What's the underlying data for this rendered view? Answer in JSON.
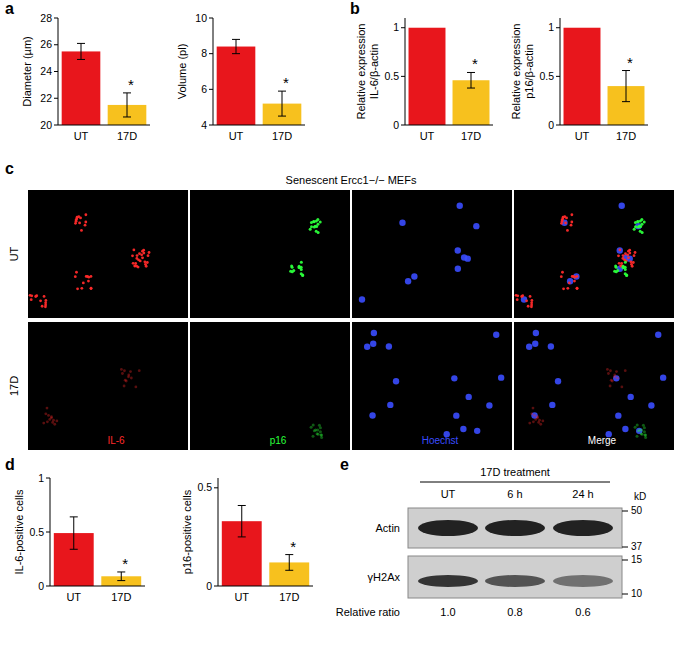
{
  "chart_data": [
    {
      "type": "bar",
      "panel": "a",
      "categories": [
        "UT",
        "17D"
      ],
      "values": [
        25.5,
        21.5
      ],
      "errors": [
        0.6,
        0.9
      ],
      "colors": [
        "#e8161c",
        "#f7c11e"
      ],
      "y_label": [
        "Diameter (µm)"
      ],
      "ylim": [
        20,
        28
      ],
      "yticks": [
        20,
        22,
        24,
        26,
        28
      ],
      "annotations": [
        {
          "x": "17D",
          "text": "*"
        }
      ]
    },
    {
      "type": "bar",
      "categories": [
        "UT",
        "17D"
      ],
      "values": [
        8.4,
        5.2
      ],
      "errors": [
        0.4,
        0.7
      ],
      "colors": [
        "#e8161c",
        "#f7c11e"
      ],
      "y_label": [
        "Volume (pl)"
      ],
      "ylim": [
        4,
        10
      ],
      "yticks": [
        4,
        6,
        8,
        10
      ],
      "annotations": [
        {
          "x": "17D",
          "text": "*"
        }
      ]
    },
    {
      "type": "bar",
      "panel": "b",
      "categories": [
        "UT",
        "17D"
      ],
      "values": [
        1,
        0.46
      ],
      "errors": [
        null,
        0.08
      ],
      "colors": [
        "#e8161c",
        "#f7c11e"
      ],
      "y_label": [
        "Relative expression",
        "IL-6/β-actin"
      ],
      "ylim": [
        0,
        1.1
      ],
      "yticks": [
        0,
        0.5,
        1
      ],
      "annotations": [
        {
          "x": "17D",
          "text": "*"
        }
      ]
    },
    {
      "type": "bar",
      "categories": [
        "UT",
        "17D"
      ],
      "values": [
        1,
        0.4
      ],
      "errors": [
        null,
        0.16
      ],
      "colors": [
        "#e8161c",
        "#f7c11e"
      ],
      "y_label": [
        "Relative expression",
        "p16/β-actin"
      ],
      "ylim": [
        0,
        1.1
      ],
      "yticks": [
        0,
        0.5,
        1
      ],
      "annotations": [
        {
          "x": "17D",
          "text": "*"
        }
      ]
    },
    {
      "type": "bar",
      "panel": "d",
      "categories": [
        "UT",
        "17D"
      ],
      "values": [
        0.49,
        0.09
      ],
      "errors": [
        0.15,
        0.04
      ],
      "colors": [
        "#e8161c",
        "#f7c11e"
      ],
      "y_label": [
        "IL-6-positive cells"
      ],
      "ylim": [
        0,
        1
      ],
      "yticks": [
        0,
        0.5,
        1
      ],
      "annotations": [
        {
          "x": "17D",
          "text": "*"
        }
      ]
    },
    {
      "type": "bar",
      "categories": [
        "UT",
        "17D"
      ],
      "values": [
        0.33,
        0.12
      ],
      "errors": [
        0.08,
        0.04
      ],
      "colors": [
        "#e8161c",
        "#f7c11e"
      ],
      "y_label": [
        "p16-positive cells"
      ],
      "ylim": [
        0,
        0.55
      ],
      "yticks": [
        0,
        0.5
      ],
      "annotations": [
        {
          "x": "17D",
          "text": "*"
        }
      ]
    }
  ],
  "microscopy": {
    "panel": "c",
    "title": "Senescent Ercc1−/− MEFs",
    "rows": [
      "UT",
      "17D"
    ],
    "channels": [
      {
        "label": "IL-6",
        "color": "#ff2a2a"
      },
      {
        "label": "p16",
        "color": "#2aff3a"
      },
      {
        "label": "Hoechst",
        "color": "#3a4cff"
      },
      {
        "label": "Merge",
        "color": "#ffffff"
      }
    ]
  },
  "blot": {
    "panel": "e",
    "title": "17D treatment",
    "lanes": [
      "UT",
      "6 h",
      "24 h"
    ],
    "rows": [
      "Actin",
      "γH2Ax"
    ],
    "unit": "kD",
    "markers": [
      50,
      37,
      15,
      10
    ],
    "ratio_label": "Relative ratio",
    "ratios": [
      {
        "value": 1,
        "label": "1.0"
      },
      {
        "value": 0.8,
        "label": "0.8"
      },
      {
        "value": 0.6,
        "label": "0.6"
      }
    ]
  }
}
